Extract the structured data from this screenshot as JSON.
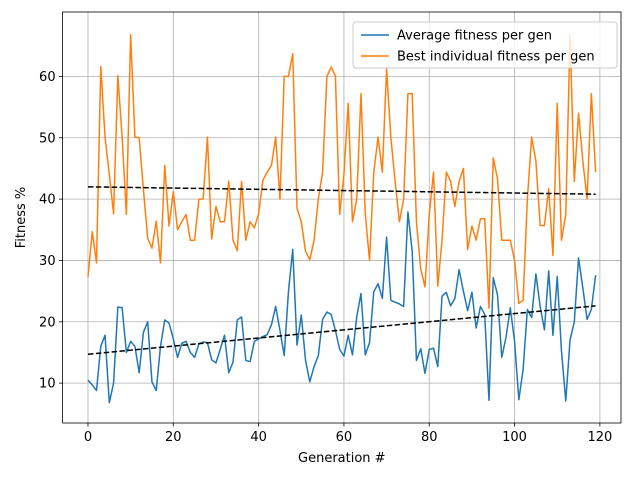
{
  "chart_data": {
    "type": "line",
    "xlabel": "Generation #",
    "ylabel": "Fitness %",
    "x": [
      0,
      1,
      2,
      3,
      4,
      5,
      6,
      7,
      8,
      9,
      10,
      11,
      12,
      13,
      14,
      15,
      16,
      17,
      18,
      19,
      20,
      21,
      22,
      23,
      24,
      25,
      26,
      27,
      28,
      29,
      30,
      31,
      32,
      33,
      34,
      35,
      36,
      37,
      38,
      39,
      40,
      41,
      42,
      43,
      44,
      45,
      46,
      47,
      48,
      49,
      50,
      51,
      52,
      53,
      54,
      55,
      56,
      57,
      58,
      59,
      60,
      61,
      62,
      63,
      64,
      65,
      66,
      67,
      68,
      69,
      70,
      71,
      72,
      73,
      74,
      75,
      76,
      77,
      78,
      79,
      80,
      81,
      82,
      83,
      84,
      85,
      86,
      87,
      88,
      89,
      90,
      91,
      92,
      93,
      94,
      95,
      96,
      97,
      98,
      99,
      100,
      101,
      102,
      103,
      104,
      105,
      106,
      107,
      108,
      109,
      110,
      111,
      112,
      113,
      114,
      115,
      116,
      117,
      118,
      119
    ],
    "series": [
      {
        "name": "Average fitness per gen",
        "color": "#1f77b4",
        "values": [
          10.5,
          9.7,
          8.8,
          16,
          17.8,
          6.8,
          10,
          22.4,
          22.3,
          15,
          16.8,
          16,
          11.7,
          18.3,
          20,
          10.2,
          8.8,
          16,
          20.3,
          19.8,
          17.2,
          14.2,
          16.5,
          16.8,
          15,
          14.2,
          16.4,
          16.7,
          16.6,
          13.8,
          13.3,
          15.5,
          17.8,
          11.7,
          13.4,
          20.3,
          20.8,
          13.7,
          13.5,
          16.8,
          17.2,
          17.6,
          17.9,
          19.5,
          22.5,
          18.6,
          14.5,
          25,
          31.8,
          16.2,
          21.1,
          13.7,
          10.2,
          12.7,
          14.5,
          20.4,
          21.6,
          21.2,
          18.6,
          15.5,
          14.4,
          17.8,
          14.6,
          20.8,
          24.6,
          14.6,
          16.6,
          24.9,
          26.2,
          23.8,
          33.8,
          23.5,
          23.2,
          22.9,
          22.5,
          37.9,
          31.5,
          13.7,
          15.6,
          11.6,
          15.5,
          15.7,
          12.7,
          24.2,
          24.8,
          22.6,
          23.8,
          28.5,
          25,
          21.8,
          24.8,
          19,
          22.5,
          21.2,
          7.2,
          27.2,
          24.4,
          14.2,
          17.5,
          22.3,
          16.8,
          7.3,
          12.2,
          22,
          20.7,
          27.8,
          22.5,
          18.7,
          28.3,
          17.8,
          27.4,
          15.2,
          7.1,
          17,
          20,
          30.4,
          25.5,
          20.4,
          22,
          27.6
        ]
      },
      {
        "name": "Best individual fitness per gen",
        "color": "#ff7f0e",
        "values": [
          27.3,
          34.7,
          29.6,
          61.6,
          50.1,
          44,
          37.6,
          60.1,
          50.2,
          37.5,
          66.8,
          50.1,
          50,
          41.5,
          33.6,
          32,
          36.4,
          29.6,
          45.5,
          35.6,
          41.2,
          35,
          36.3,
          37.5,
          33.3,
          33.3,
          40,
          40,
          50.1,
          33.5,
          38.8,
          36.3,
          36.3,
          42.9,
          33.3,
          31.6,
          42.9,
          33.3,
          36.3,
          35.3,
          37.6,
          43.1,
          44.4,
          45.5,
          50.1,
          40,
          60,
          60,
          63.7,
          38.5,
          36.3,
          31.5,
          30.1,
          33.3,
          40,
          44.4,
          60,
          61.5,
          60.1,
          37.5,
          44,
          55.6,
          36.3,
          40,
          57.2,
          37.6,
          30,
          44.4,
          50.1,
          44.4,
          61.2,
          50,
          42.9,
          36.3,
          40,
          57.2,
          57.2,
          36.3,
          28.6,
          25.7,
          37.5,
          44.4,
          25.8,
          33.3,
          44.4,
          42.9,
          38.8,
          42.9,
          45,
          31.8,
          35.6,
          33.3,
          36.8,
          36.8,
          22.2,
          46.7,
          43.3,
          33.3,
          33.3,
          33.3,
          30,
          23,
          23.5,
          40,
          50.1,
          46.2,
          35.7,
          35.7,
          41.7,
          30.8,
          55.6,
          33.3,
          37.5,
          66.7,
          42.9,
          54,
          46.2,
          40,
          57.2,
          44.4
        ]
      }
    ],
    "trendlines": [
      {
        "color": "#000000",
        "style": "dashed",
        "x": [
          0,
          119
        ],
        "values": [
          14.7,
          22.6
        ]
      },
      {
        "color": "#000000",
        "style": "dashed",
        "x": [
          0,
          119
        ],
        "values": [
          42.0,
          40.8
        ]
      }
    ],
    "xlim": [
      -5.95,
      124.95
    ],
    "ylim": [
      3.5,
      70.5
    ],
    "xticks": [
      0,
      20,
      40,
      60,
      80,
      100,
      120
    ],
    "yticks": [
      10,
      20,
      30,
      40,
      50,
      60
    ],
    "grid": true,
    "legend": "upper right"
  }
}
